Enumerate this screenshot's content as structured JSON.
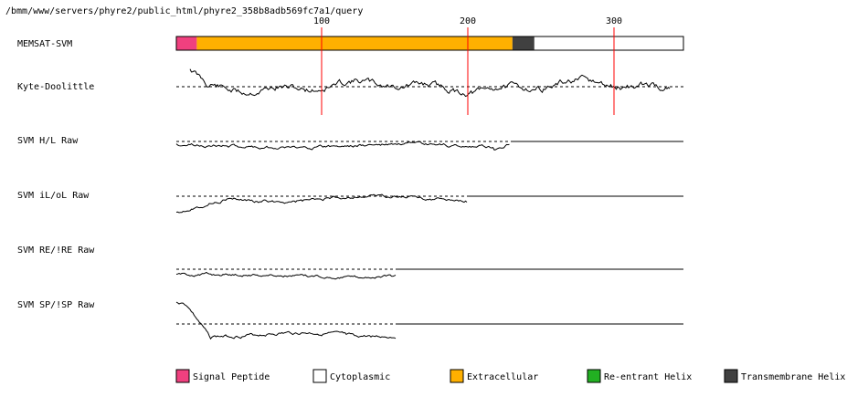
{
  "header": {
    "path": "/bmm/www/servers/phyre2/public_html/phyre2_358b8adb569fc7a1/query"
  },
  "axis": {
    "ticks": [
      "100",
      "200",
      "300"
    ],
    "tick_positions": [
      100,
      200,
      300
    ],
    "seq_length": 347
  },
  "tracks": {
    "memsat": "MEMSAT-SVM",
    "kd": "Kyte-Doolittle",
    "hl": "SVM H/L Raw",
    "ilol": "SVM iL/oL Raw",
    "reire": "SVM RE/!RE Raw",
    "spisp": "SVM SP/!SP Raw"
  },
  "memsat_segments": [
    {
      "type": "signal",
      "start": 1,
      "end": 14
    },
    {
      "type": "extracellular",
      "start": 15,
      "end": 230
    },
    {
      "type": "transmembrane",
      "start": 231,
      "end": 245
    },
    {
      "type": "cytoplasmic",
      "start": 246,
      "end": 347
    }
  ],
  "legend": [
    {
      "key": "signal",
      "label": "Signal Peptide",
      "color": "#f0407f"
    },
    {
      "key": "cytoplasmic",
      "label": "Cytoplasmic",
      "color": "#ffffff"
    },
    {
      "key": "extracellular",
      "label": "Extracellular",
      "color": "#ffb000"
    },
    {
      "key": "reentrant",
      "label": "Re-entrant Helix",
      "color": "#22b022"
    },
    {
      "key": "transmembrane",
      "label": "Transmembrane Helix",
      "color": "#404040"
    }
  ],
  "colors": {
    "marker": "#ff0000",
    "trace": "#000000",
    "baseline": "#000000"
  }
}
